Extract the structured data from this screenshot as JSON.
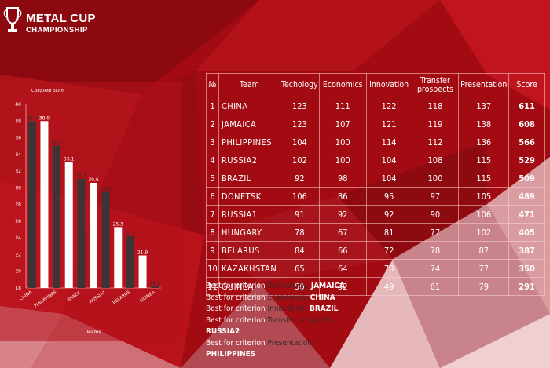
{
  "header": {
    "title": "METAL CUP",
    "subtitle": "CHAMPIONSHIP"
  },
  "colors": {
    "background": "#a30b12",
    "bar_dark": "#3d3435",
    "bar_light": "#ffffff",
    "text": "#ffffff",
    "criterion_text": "#3a2b2b"
  },
  "chart_data": {
    "type": "bar",
    "title": "",
    "ylabel": "Средний балл",
    "xlabel": "Teams",
    "ylim": [
      18,
      40
    ],
    "yticks": [
      18,
      20,
      22,
      24,
      26,
      28,
      30,
      32,
      34,
      36,
      38,
      40
    ],
    "categories": [
      "CHINA",
      "JAMAICA",
      "PHILIPPINES",
      "RUSSIA2",
      "BRAZIL",
      "DONETSK",
      "RUSSIA1",
      "HUNGARY",
      "BELARUS",
      "KAZAKHSTAN",
      "GUINEA"
    ],
    "shown_category_labels": [
      "CHINA",
      "PHILIPPINES",
      "BRAZIL",
      "RUSSIA1",
      "BELARUS",
      "GUINEA"
    ],
    "values": [
      38.0,
      38.0,
      35.1,
      33.1,
      31.1,
      30.6,
      29.5,
      25.3,
      24.2,
      21.9,
      18.2
    ],
    "value_labels": [
      "38.0",
      "38.0",
      "35.1",
      "33.1",
      "31.1",
      "30.6",
      "29.5",
      "25.3",
      "24.2",
      "21.9",
      "18.2"
    ],
    "grid": false,
    "legend": "none"
  },
  "table": {
    "columns": [
      "№",
      "Team",
      "Techology",
      "Economics",
      "Innovation",
      "Transfer prospects",
      "Presentation",
      "Score"
    ],
    "rows": [
      [
        "1",
        "CHINA",
        "123",
        "111",
        "122",
        "118",
        "137",
        "611"
      ],
      [
        "2",
        "JAMAICA",
        "123",
        "107",
        "121",
        "119",
        "138",
        "608"
      ],
      [
        "3",
        "PHILIPPINES",
        "104",
        "100",
        "114",
        "112",
        "136",
        "566"
      ],
      [
        "4",
        "RUSSIA2",
        "102",
        "100",
        "104",
        "108",
        "115",
        "529"
      ],
      [
        "5",
        "BRAZIL",
        "92",
        "98",
        "104",
        "100",
        "115",
        "509"
      ],
      [
        "6",
        "DONETSK",
        "106",
        "86",
        "95",
        "97",
        "105",
        "489"
      ],
      [
        "7",
        "RUSSIA1",
        "91",
        "92",
        "92",
        "90",
        "106",
        "471"
      ],
      [
        "8",
        "HUNGARY",
        "78",
        "67",
        "81",
        "77",
        "102",
        "405"
      ],
      [
        "9",
        "BELARUS",
        "84",
        "66",
        "72",
        "78",
        "87",
        "387"
      ],
      [
        "10",
        "KAZAKHSTAN",
        "65",
        "64",
        "70",
        "74",
        "77",
        "350"
      ],
      [
        "11",
        "GUINEA",
        "50",
        "52",
        "49",
        "61",
        "79",
        "291"
      ]
    ]
  },
  "best": {
    "prefix": "Best for criterion",
    "items": [
      {
        "criterion": "Technology:",
        "team": "JAMAICA"
      },
      {
        "criterion": "Economics:",
        "team": "CHINA"
      },
      {
        "criterion": "Innovation:",
        "team": "BRAZIL"
      },
      {
        "criterion": "Transfer prospects:",
        "team": "RUSSIA2"
      },
      {
        "criterion": "Presentation:",
        "team": "PHILIPPINES"
      }
    ]
  }
}
